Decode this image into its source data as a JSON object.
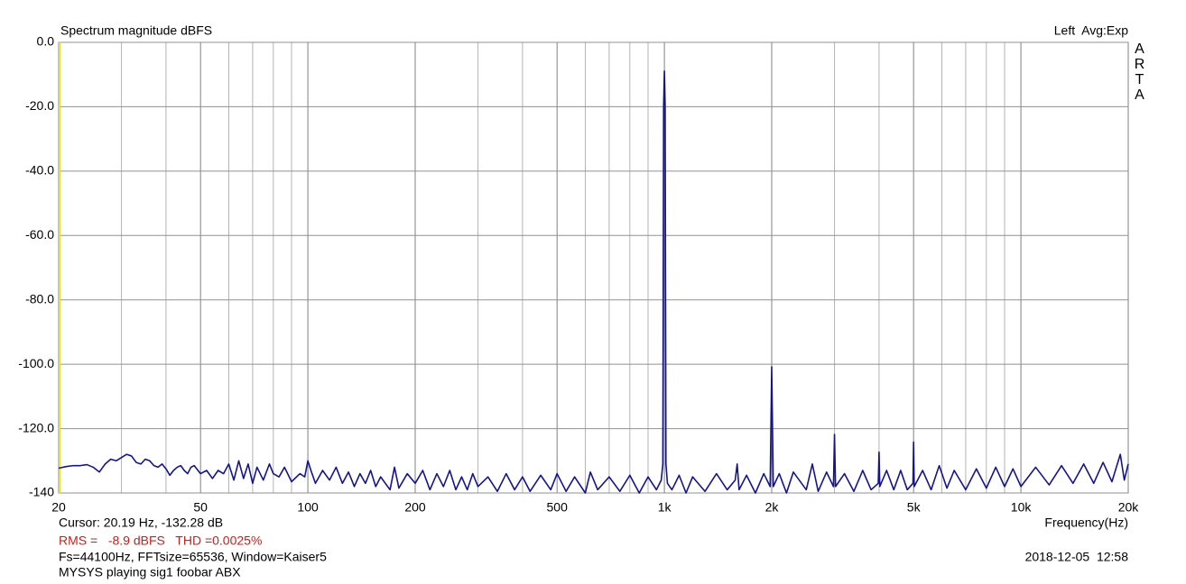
{
  "chart_data": {
    "type": "line",
    "title": "Spectrum magnitude dBFS",
    "channel_info": "Left  Avg:Exp",
    "brand": "ARTA",
    "x_label": "Frequency(Hz)",
    "cursor": "Cursor: 20.19 Hz, -132.28 dB",
    "measurement": "RMS =   -8.9 dBFS   THD =0.0025%",
    "settings": "Fs=44100Hz, FFTsize=65536, Window=Kaiser5",
    "description": "MYSYS playing sig1 foobar ABX",
    "timestamp": "2018-12-05  12:58",
    "x_scale": "log",
    "grid": true,
    "color": "#14148c",
    "xlim": [
      20,
      20000
    ],
    "ylim": [
      -140,
      0
    ],
    "xticks": [
      20,
      50,
      100,
      200,
      500,
      {
        "value": 1000,
        "label": "1k"
      },
      {
        "value": 2000,
        "label": "2k"
      },
      {
        "value": 5000,
        "label": "5k"
      },
      {
        "value": 10000,
        "label": "10k"
      },
      {
        "value": 20000,
        "label": "20k"
      }
    ],
    "x_minor_grid": [
      30,
      40,
      60,
      70,
      80,
      90,
      300,
      400,
      600,
      700,
      800,
      900,
      3000,
      4000,
      6000,
      7000,
      8000,
      9000
    ],
    "yticks": [
      {
        "value": 0,
        "label": "0.0"
      },
      {
        "value": -20,
        "label": "-20.0"
      },
      {
        "value": -40,
        "label": "-40.0"
      },
      {
        "value": -60,
        "label": "-60.0"
      },
      {
        "value": -80,
        "label": "-80.0"
      },
      {
        "value": -100,
        "label": "-100.0"
      },
      {
        "value": -120,
        "label": "-120.0"
      },
      {
        "value": -140,
        "label": "-140"
      }
    ],
    "x": [
      20,
      21,
      22,
      23,
      24,
      25,
      26,
      27,
      28,
      29,
      30,
      31,
      32,
      33,
      34,
      35,
      36,
      37,
      38,
      39,
      40,
      41,
      42,
      43,
      44,
      45,
      46,
      47,
      48,
      50,
      52,
      54,
      56,
      58,
      60,
      62,
      64,
      66,
      68,
      70,
      72,
      75,
      78,
      80,
      83,
      86,
      90,
      95,
      98,
      100,
      102,
      105,
      110,
      115,
      120,
      125,
      130,
      135,
      140,
      145,
      150,
      155,
      160,
      170,
      175,
      180,
      190,
      200,
      210,
      220,
      230,
      240,
      250,
      260,
      270,
      280,
      290,
      300,
      320,
      340,
      360,
      380,
      400,
      420,
      450,
      480,
      500,
      530,
      560,
      600,
      620,
      650,
      700,
      750,
      800,
      850,
      900,
      950,
      980,
      990,
      995,
      1000,
      1005,
      1010,
      1020,
      1050,
      1100,
      1150,
      1200,
      1300,
      1400,
      1500,
      1580,
      1600,
      1620,
      1700,
      1800,
      1900,
      1980,
      2000,
      2020,
      2100,
      2200,
      2300,
      2500,
      2600,
      2700,
      2850,
      2980,
      3000,
      3020,
      3200,
      3400,
      3600,
      3800,
      3980,
      4000,
      4020,
      4200,
      4400,
      4600,
      4800,
      4980,
      5000,
      5020,
      5300,
      5600,
      5900,
      6200,
      6500,
      7000,
      7500,
      8000,
      8500,
      9000,
      9500,
      10000,
      11000,
      12000,
      13000,
      14000,
      15000,
      16000,
      17000,
      18000,
      19000,
      19500,
      20000
    ],
    "values": [
      -132.3,
      -131.8,
      -131.5,
      -131.5,
      -131.2,
      -132,
      -133.5,
      -131,
      -129.5,
      -130,
      -129,
      -128,
      -128.5,
      -130.5,
      -131,
      -129.5,
      -130,
      -131.5,
      -132,
      -131,
      -132.5,
      -134.5,
      -133,
      -132,
      -131.5,
      -133,
      -134,
      -132,
      -131.5,
      -134,
      -133,
      -135.5,
      -133,
      -134,
      -131,
      -136,
      -130,
      -135.5,
      -131,
      -137,
      -132,
      -136,
      -131,
      -134,
      -135,
      -132,
      -136.5,
      -134,
      -135,
      -130,
      -133,
      -137,
      -133,
      -136,
      -132,
      -137,
      -133.5,
      -138,
      -134,
      -137,
      -133,
      -138,
      -135,
      -139,
      -132,
      -138.5,
      -134,
      -137,
      -133,
      -139,
      -134,
      -138,
      -133,
      -139,
      -135,
      -139,
      -134,
      -138,
      -135,
      -139.5,
      -134,
      -139,
      -135,
      -139.5,
      -134.5,
      -139,
      -134,
      -139.5,
      -135,
      -140,
      -133.5,
      -139,
      -135,
      -139.5,
      -134.5,
      -140,
      -135,
      -139,
      -136,
      -131,
      -20,
      -8.9,
      -20,
      -131,
      -137,
      -139,
      -134.5,
      -140,
      -135,
      -139.5,
      -134,
      -139,
      -136,
      -131,
      -139,
      -134.5,
      -140,
      -134,
      -138,
      -100.8,
      -138,
      -134,
      -140,
      -133.5,
      -139,
      -131,
      -139.5,
      -133.5,
      -138,
      -121.8,
      -138,
      -134,
      -139.5,
      -133,
      -139,
      -137,
      -127.3,
      -138,
      -133,
      -139,
      -133,
      -139,
      -137,
      -124.2,
      -138,
      -133,
      -139,
      -131.5,
      -138.5,
      -133,
      -139,
      -132.5,
      -138.5,
      -132,
      -138,
      -132.5,
      -138,
      -132,
      -137.5,
      -131.5,
      -137,
      -131,
      -137,
      -130.5,
      -136.5,
      -128,
      -136,
      -131
    ]
  }
}
